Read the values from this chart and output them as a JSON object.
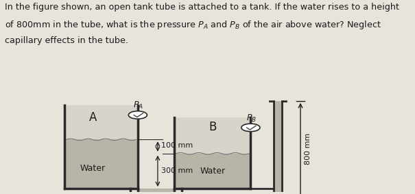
{
  "bg_color": "#e8e4dc",
  "text_color": "#1a1a1a",
  "water_color": "#b8b4a8",
  "wall_color": "#2a2a2a",
  "wall_lw": 2.0,
  "label_A": "A",
  "label_B": "B",
  "label_Water1": "Water",
  "label_Water2": "Water",
  "label_PA": "Pₐ",
  "label_PB": "Pₙ",
  "label_100mm": "100 mm",
  "label_300mm": "300 mm",
  "label_800mm": "800 mm",
  "figure_bg": "#e8e4dc",
  "title_lines": [
    "In the figure shown, an open tank tube is attached to a tank. If the water rises to a height",
    "of 800mm in the tube, what is the pressure $P_A$ and $P_B$ of the air above water? Neglect",
    "capillary effects in the tube."
  ],
  "title_fontsize": 9.2
}
